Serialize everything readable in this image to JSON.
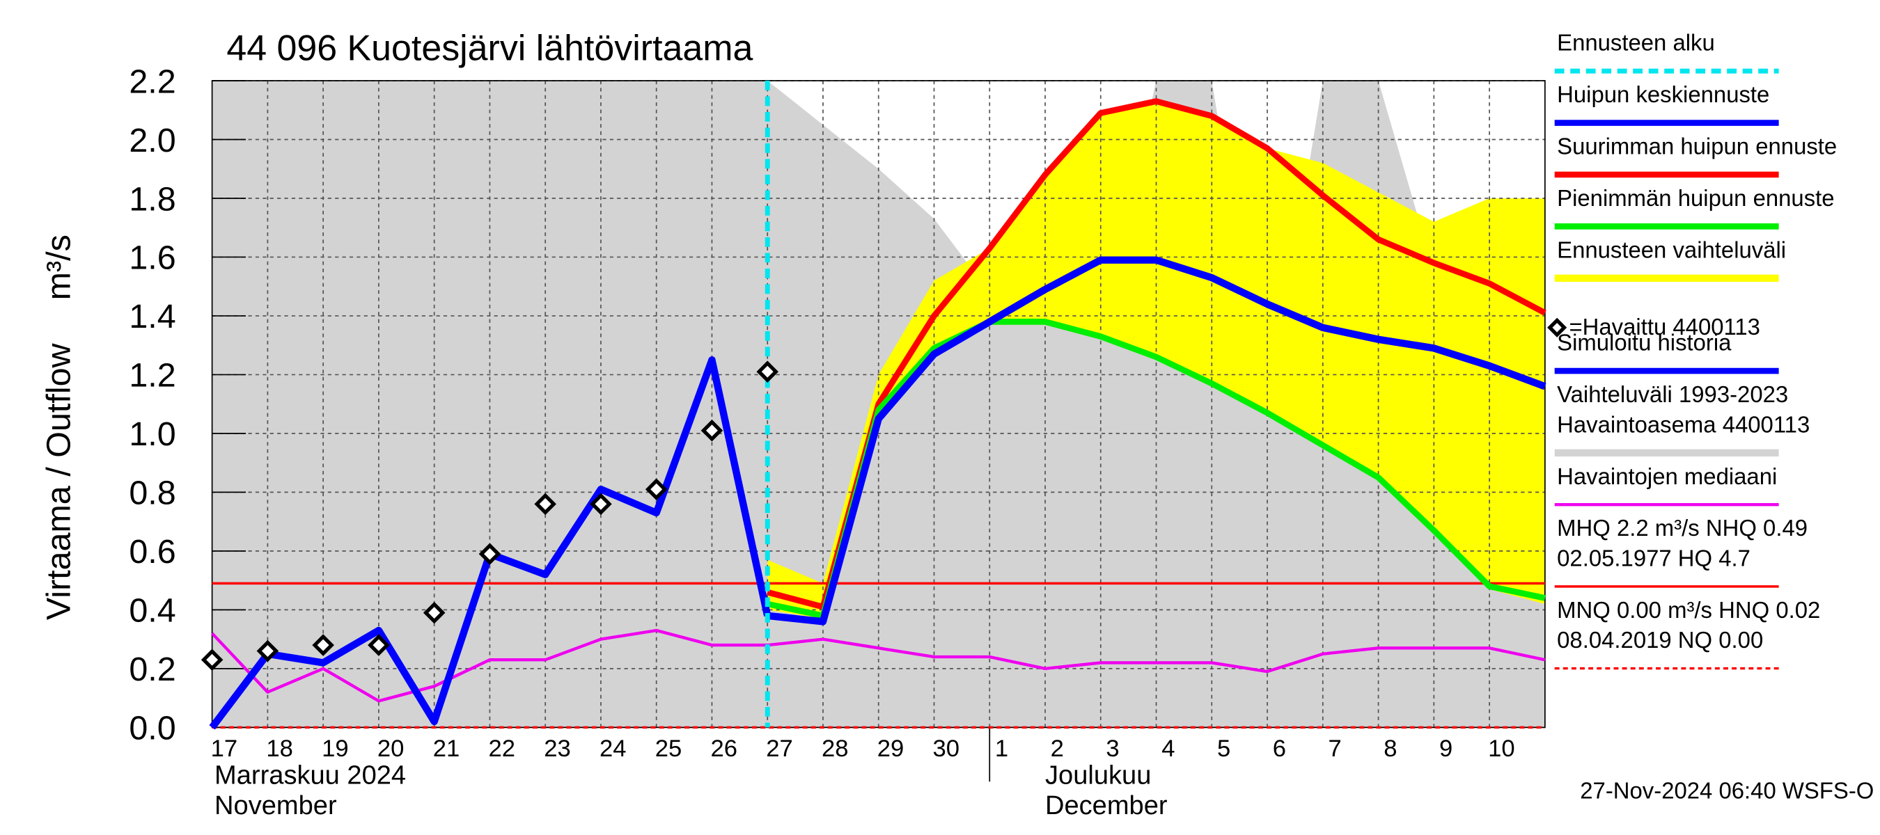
{
  "chart_data": {
    "type": "line",
    "title": "44 096 Kuotesjärvi lähtövirtaama",
    "y_label": "Virtaama / Outflow",
    "y_unit": "m³/s",
    "footer": "27-Nov-2024 06:40 WSFS-O",
    "categories": [
      "17",
      "18",
      "19",
      "20",
      "21",
      "22",
      "23",
      "24",
      "25",
      "26",
      "27",
      "28",
      "29",
      "30",
      "1",
      "2",
      "3",
      "4",
      "5",
      "6",
      "7",
      "8",
      "9",
      "10",
      null
    ],
    "months": [
      {
        "lines": [
          "Marraskuu 2024",
          "November"
        ],
        "start": 0
      },
      {
        "lines": [
          "Joulukuu",
          "December"
        ],
        "start": 14
      }
    ],
    "ylim": [
      0,
      2.2
    ],
    "yticks": [
      {
        "value": 0,
        "label": "0.0"
      },
      {
        "value": 0.2,
        "label": "0.2"
      },
      {
        "value": 0.4,
        "label": "0.4"
      },
      {
        "value": 0.6,
        "label": "0.6"
      },
      {
        "value": 0.8,
        "label": "0.8"
      },
      {
        "value": 1,
        "label": "1.0"
      },
      {
        "value": 1.2,
        "label": "1.2"
      },
      {
        "value": 1.4,
        "label": "1.4"
      },
      {
        "value": 1.6,
        "label": "1.6"
      },
      {
        "value": 1.8,
        "label": "1.8"
      },
      {
        "value": 2,
        "label": "2.0"
      },
      {
        "value": 2.2,
        "label": "2.2"
      }
    ],
    "grid": true,
    "series": [
      {
        "name": [
          "Ennusteen alku"
        ],
        "kind": "vline",
        "color": "#00e5ee",
        "x": 10
      },
      {
        "name": [
          "Huipun keskiennuste"
        ],
        "kind": "line",
        "color": "#0000ff",
        "width": 6,
        "values": [
          null,
          null,
          null,
          null,
          null,
          null,
          null,
          null,
          null,
          null,
          0.38,
          0.36,
          1.05,
          1.27,
          1.38,
          1.49,
          1.59,
          1.59,
          1.53,
          1.44,
          1.36,
          1.32,
          1.29,
          1.23,
          1.16
        ]
      },
      {
        "name": [
          "Suurimman huipun ennuste"
        ],
        "kind": "line",
        "color": "#ff0000",
        "width": 5,
        "values": [
          null,
          null,
          null,
          null,
          null,
          null,
          null,
          null,
          null,
          null,
          0.46,
          0.41,
          1.1,
          1.4,
          1.63,
          1.88,
          2.09,
          2.13,
          2.08,
          1.97,
          1.81,
          1.66,
          1.58,
          1.51,
          1.41
        ]
      },
      {
        "name": [
          "Pienimmän huipun ennuste"
        ],
        "kind": "line",
        "color": "#00ee00",
        "width": 5,
        "values": [
          null,
          null,
          null,
          null,
          null,
          null,
          null,
          null,
          null,
          null,
          0.42,
          0.38,
          1.08,
          1.29,
          1.38,
          1.38,
          1.33,
          1.26,
          1.17,
          1.07,
          0.96,
          0.85,
          0.67,
          0.48,
          0.44
        ]
      },
      {
        "name": [
          "Ennusteen vaihteluväli"
        ],
        "kind": "band",
        "color": "#ffff00",
        "upper": [
          null,
          null,
          null,
          null,
          null,
          null,
          null,
          null,
          null,
          null,
          0.57,
          0.49,
          1.2,
          1.52,
          1.63,
          1.88,
          2.09,
          2.13,
          2.08,
          1.97,
          1.92,
          1.82,
          1.72,
          1.8,
          1.8
        ],
        "lower": [
          null,
          null,
          null,
          null,
          null,
          null,
          null,
          null,
          null,
          null,
          0.4,
          0.37,
          1.05,
          1.27,
          1.37,
          1.37,
          1.32,
          1.25,
          1.16,
          1.06,
          0.95,
          0.84,
          0.66,
          0.47,
          0.42
        ]
      },
      {
        "name": [
          "=Havaittu 4400113"
        ],
        "kind": "points",
        "color": "#000000",
        "values": [
          0.23,
          0.26,
          0.28,
          0.28,
          0.39,
          0.59,
          0.76,
          0.76,
          0.81,
          1.01,
          1.21,
          null,
          null,
          null,
          null,
          null,
          null,
          null,
          null,
          null,
          null,
          null,
          null,
          null,
          null
        ]
      },
      {
        "name": [
          "Simuloitu historia"
        ],
        "kind": "line",
        "color": "#0000ff",
        "width": 6,
        "values": [
          0.0,
          0.25,
          0.22,
          0.33,
          0.02,
          0.59,
          0.52,
          0.81,
          0.73,
          1.25,
          0.38,
          null,
          null,
          null,
          null,
          null,
          null,
          null,
          null,
          null,
          null,
          null,
          null,
          null,
          null
        ]
      },
      {
        "name": [
          "Vaihteluväli 1993-2023",
          " Havaintoasema 4400113"
        ],
        "kind": "area",
        "color": "#d3d3d3",
        "values": [
          2.2,
          2.2,
          2.2,
          2.2,
          2.2,
          2.2,
          2.2,
          2.2,
          2.2,
          2.2,
          2.2,
          2.05,
          1.9,
          1.73,
          1.48,
          1.7,
          1.35,
          2.2,
          2.2,
          1.05,
          2.2,
          2.2,
          1.55,
          1.48,
          1.33
        ]
      },
      {
        "name": [
          "Havaintojen mediaani"
        ],
        "kind": "line",
        "color": "#ee00ee",
        "width": 2.5,
        "values": [
          0.32,
          0.12,
          0.2,
          0.09,
          0.14,
          0.23,
          0.23,
          0.3,
          0.33,
          0.28,
          0.28,
          0.3,
          0.27,
          0.24,
          0.24,
          0.2,
          0.22,
          0.22,
          0.22,
          0.19,
          0.25,
          0.27,
          0.27,
          0.27,
          0.23
        ]
      },
      {
        "name": [
          "MHQ  2.2 m³/s NHQ 0.49",
          "02.05.1977 HQ  4.7"
        ],
        "kind": "hline",
        "color": "#ff0000",
        "value": 0.49
      },
      {
        "name": [
          "MNQ 0.00 m³/s HNQ 0.02",
          "08.04.2019 NQ 0.00"
        ],
        "kind": "hline",
        "color": "#ff0000",
        "dashed": true,
        "value": 0
      }
    ]
  }
}
